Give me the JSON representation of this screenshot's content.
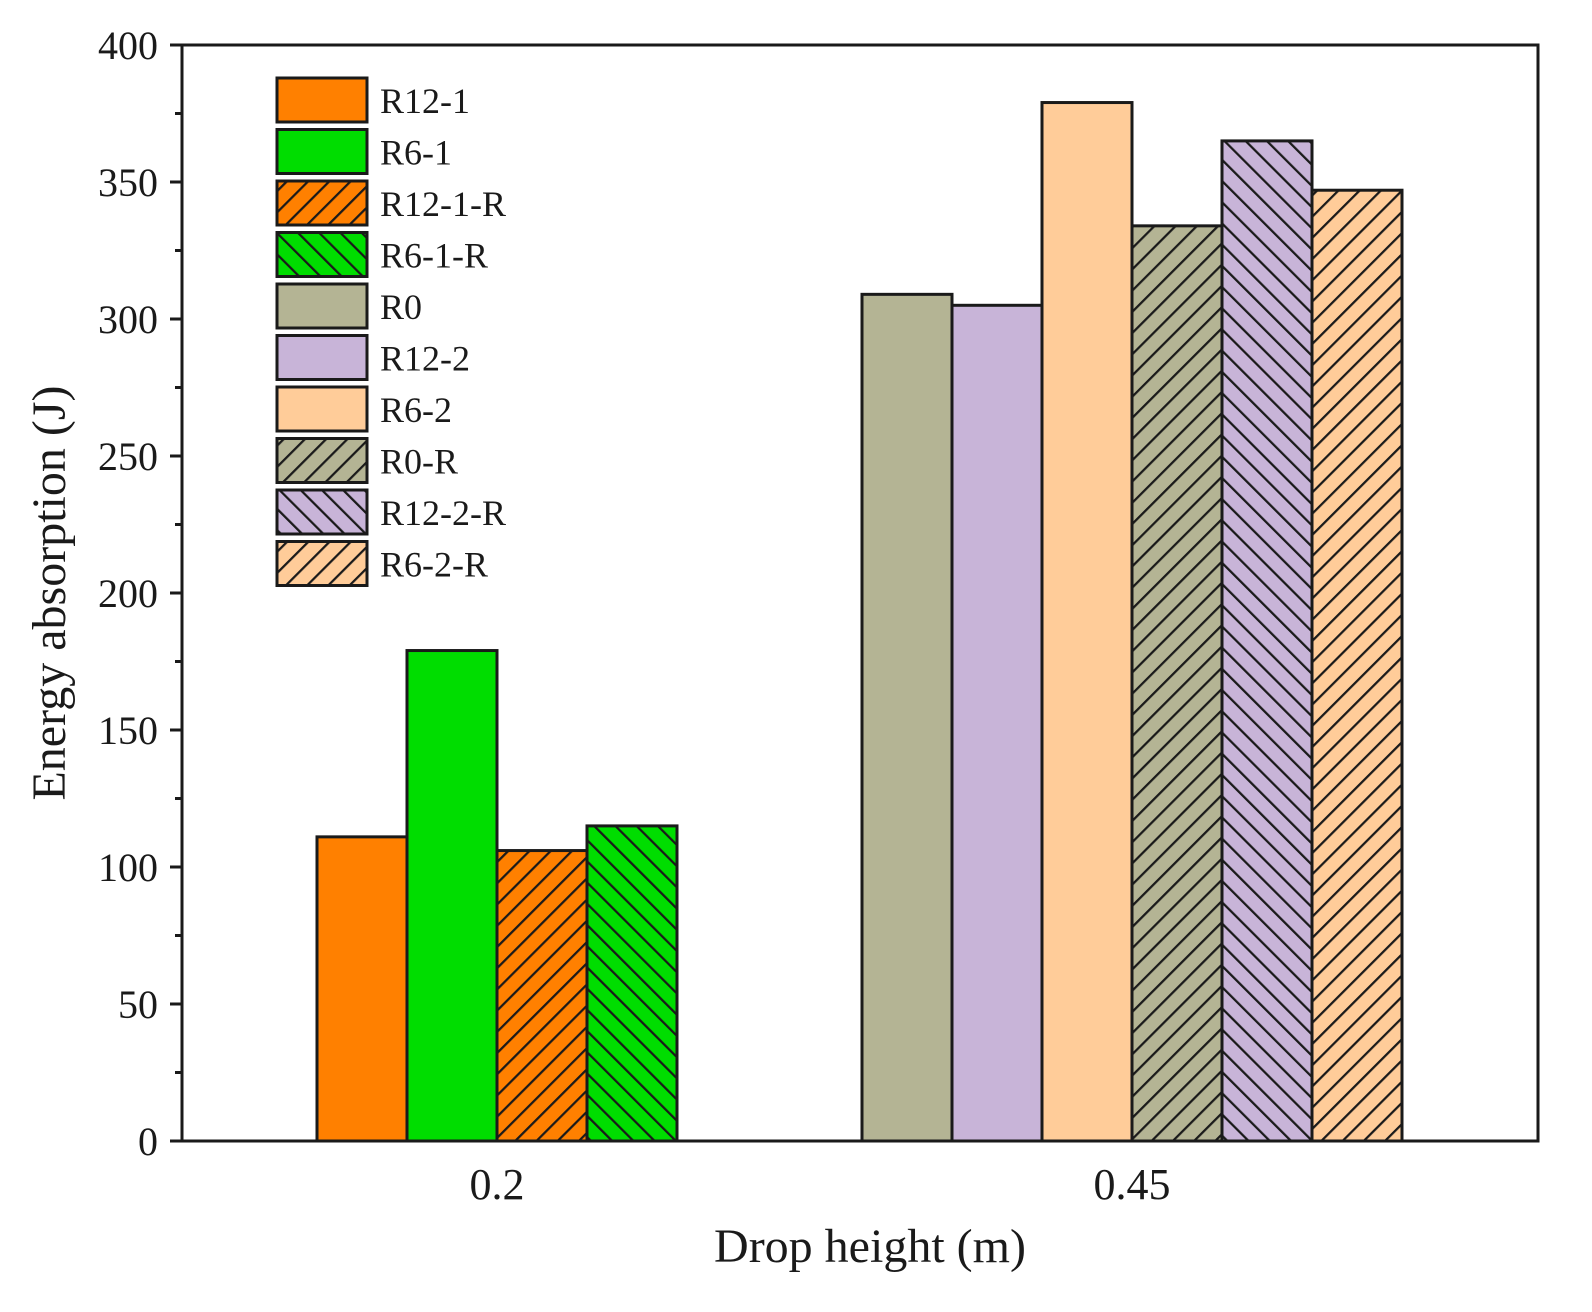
{
  "chart_data": {
    "type": "bar",
    "title": "",
    "xlabel": "Drop height (m)",
    "ylabel": "Energy absorption (J)",
    "ylim": [
      0,
      400
    ],
    "yticks": [
      0,
      50,
      100,
      150,
      200,
      250,
      300,
      350,
      400
    ],
    "grid": false,
    "legend_position": "top-left",
    "categories": [
      "0.2",
      "0.45"
    ],
    "series": [
      {
        "name": "R12-1",
        "category": "0.2",
        "value": 111,
        "color": "#ff8000",
        "hatch": "none"
      },
      {
        "name": "R6-1",
        "category": "0.2",
        "value": 179,
        "color": "#00dd00",
        "hatch": "none"
      },
      {
        "name": "R12-1-R",
        "category": "0.2",
        "value": 106,
        "color": "#ff8000",
        "hatch": "forward"
      },
      {
        "name": "R6-1-R",
        "category": "0.2",
        "value": 115,
        "color": "#00dd00",
        "hatch": "backward"
      },
      {
        "name": "R0",
        "category": "0.45",
        "value": 309,
        "color": "#b4b494",
        "hatch": "none"
      },
      {
        "name": "R12-2",
        "category": "0.45",
        "value": 305,
        "color": "#c8b4d8",
        "hatch": "none"
      },
      {
        "name": "R6-2",
        "category": "0.45",
        "value": 379,
        "color": "#ffcc99",
        "hatch": "none"
      },
      {
        "name": "R0-R",
        "category": "0.45",
        "value": 334,
        "color": "#b4b494",
        "hatch": "forward"
      },
      {
        "name": "R12-2-R",
        "category": "0.45",
        "value": 365,
        "color": "#c8b4d8",
        "hatch": "backward"
      },
      {
        "name": "R6-2-R",
        "category": "0.45",
        "value": 347,
        "color": "#ffcc99",
        "hatch": "forward"
      }
    ]
  }
}
